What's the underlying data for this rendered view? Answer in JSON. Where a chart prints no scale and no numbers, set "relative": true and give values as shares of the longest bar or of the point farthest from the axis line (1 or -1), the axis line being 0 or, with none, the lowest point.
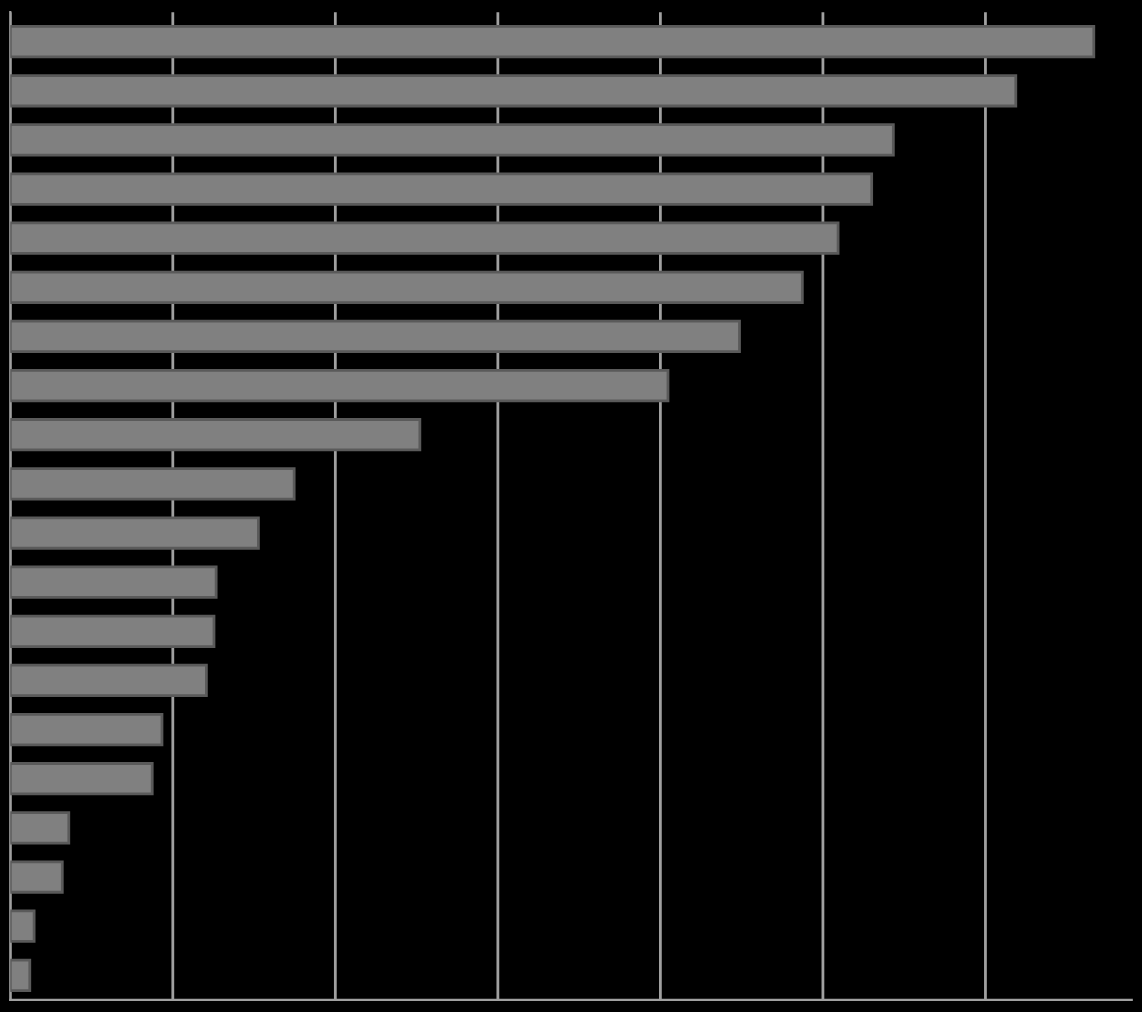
{
  "chart_data": {
    "type": "bar",
    "orientation": "horizontal",
    "relative": true,
    "grid": "x",
    "categories": [
      null,
      null,
      null,
      null,
      null,
      null,
      null,
      null,
      null,
      null,
      null,
      null,
      null,
      null,
      null,
      null,
      null,
      null,
      null,
      null
    ],
    "values": [
      1,
      0.928,
      0.815,
      0.795,
      0.764,
      0.731,
      0.673,
      0.607,
      0.378,
      0.262,
      0.229,
      0.19,
      0.188,
      0.181,
      0.14,
      0.131,
      0.054,
      0.048,
      0.022,
      0.018
    ],
    "color": "#808080"
  }
}
